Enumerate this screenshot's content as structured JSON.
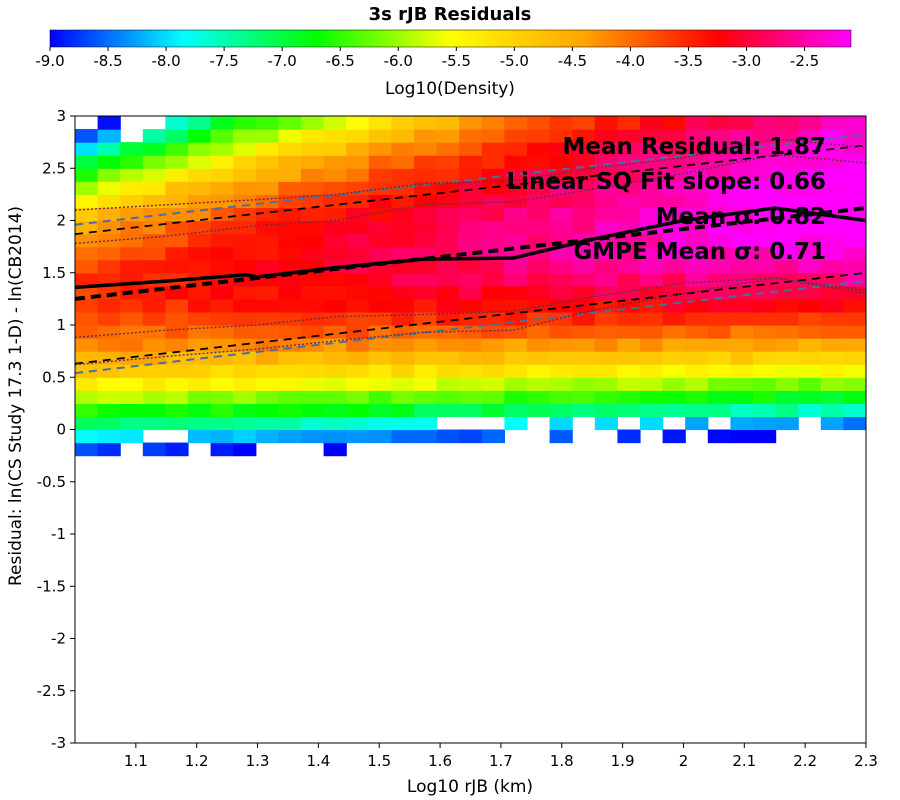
{
  "chart_data": {
    "type": "heatmap",
    "title": "3s rJB Residuals",
    "xlabel": "Log10 rJB (km)",
    "ylabel": "Residual: ln(CS Study 17.3 1-D) - ln(CB2014)",
    "xlim": [
      1.0,
      2.3
    ],
    "ylim": [
      -3,
      3
    ],
    "x_ticks": [
      "1.1",
      "1.2",
      "1.3",
      "1.4",
      "1.5",
      "1.6",
      "1.7",
      "1.8",
      "1.9",
      "2",
      "2.1",
      "2.2",
      "2.3"
    ],
    "y_ticks": [
      "3",
      "2.5",
      "2",
      "1.5",
      "1",
      "0.5",
      "0",
      "-0.5",
      "-1",
      "-1.5",
      "-2",
      "-2.5",
      "-3"
    ],
    "colorbar": {
      "label": "Log10(Density)",
      "range": [
        -9.0,
        -2.1
      ],
      "ticks": [
        "-9.0",
        "-8.5",
        "-8.0",
        "-7.5",
        "-7.0",
        "-6.5",
        "-6.0",
        "-5.5",
        "-5.0",
        "-4.5",
        "-4.0",
        "-3.5",
        "-3.0",
        "-2.5"
      ],
      "colors": [
        "#0000ff",
        "#00ffff",
        "#00ff00",
        "#ffff00",
        "#ffa500",
        "#ff0000",
        "#ff00ff"
      ]
    },
    "annotations": [
      "Mean Residual: 1.87",
      "Linear SQ Fit slope: 0.66",
      "Mean σ: 0.82",
      "GMPE Mean σ: 0.71"
    ],
    "series": [
      {
        "style": "solid-thick",
        "x": [
          1.0,
          1.15,
          1.28,
          1.3,
          1.43,
          1.57,
          1.72,
          1.85,
          2.0,
          2.15,
          2.3
        ],
        "y": [
          1.36,
          1.42,
          1.48,
          1.46,
          1.55,
          1.63,
          1.64,
          1.82,
          2.0,
          2.12,
          2.0
        ]
      },
      {
        "style": "dashed-thick",
        "x": [
          1.0,
          2.3
        ],
        "y": [
          1.25,
          2.12
        ]
      },
      {
        "style": "dashed",
        "x": [
          1.0,
          2.3
        ],
        "y": [
          1.87,
          2.72
        ]
      },
      {
        "style": "dashed",
        "x": [
          1.0,
          2.3
        ],
        "y": [
          0.63,
          1.5
        ]
      },
      {
        "style": "dashed-steelblue",
        "x": [
          1.0,
          2.3
        ],
        "y": [
          1.96,
          2.82
        ]
      },
      {
        "style": "dashed-steelblue",
        "x": [
          1.0,
          2.3
        ],
        "y": [
          0.54,
          1.42
        ]
      },
      {
        "style": "dotted",
        "x": [
          1.0,
          1.15,
          1.3,
          1.43,
          1.57,
          1.72,
          1.85,
          2.0,
          2.15,
          2.3
        ],
        "y": [
          2.1,
          2.15,
          2.2,
          2.25,
          2.35,
          2.38,
          2.5,
          2.6,
          2.78,
          2.7
        ]
      },
      {
        "style": "dotted",
        "x": [
          1.0,
          1.15,
          1.3,
          1.43,
          1.57,
          1.72,
          1.85,
          2.0,
          2.15,
          2.3
        ],
        "y": [
          0.62,
          0.7,
          0.77,
          0.85,
          0.93,
          0.95,
          1.14,
          1.3,
          1.45,
          1.3
        ]
      },
      {
        "style": "dotted",
        "x": [
          1.0,
          1.15,
          1.3,
          1.43,
          1.57,
          1.72,
          1.85,
          2.0,
          2.15,
          2.3
        ],
        "y": [
          1.78,
          1.85,
          1.95,
          2.0,
          2.15,
          2.18,
          2.3,
          2.45,
          2.63,
          2.55
        ]
      },
      {
        "style": "dotted",
        "x": [
          1.0,
          1.15,
          1.3,
          1.43,
          1.57,
          1.72,
          1.85,
          2.0,
          2.15,
          2.3
        ],
        "y": [
          0.88,
          0.95,
          1.0,
          1.08,
          1.1,
          1.13,
          1.27,
          1.4,
          1.45,
          1.33
        ]
      }
    ]
  }
}
